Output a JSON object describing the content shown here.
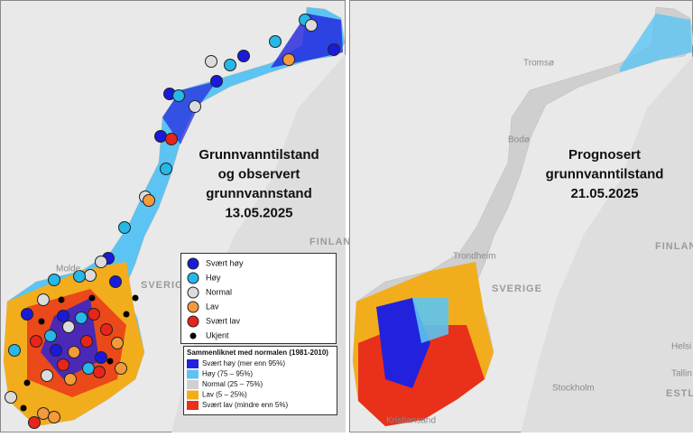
{
  "panels": [
    {
      "title_lines": [
        "Grunnvanntilstand",
        "og observert",
        "grunnvannstand",
        "13.05.2025"
      ],
      "place_labels": [
        "FINLAN",
        "SVERIGE",
        "Molde"
      ]
    },
    {
      "title_lines": [
        "Prognosert",
        "grunnvanntilstand",
        "21.05.2025"
      ],
      "place_labels": [
        "Tromsø",
        "Bodø",
        "Trondheim",
        "SVERIGE",
        "FINLAN",
        "Kristiansand",
        "Stockholm",
        "Helsi",
        "Tallin",
        "ESTLA"
      ]
    }
  ],
  "legend": {
    "stations": [
      {
        "label": "Svært høy",
        "color": "#1a1adb"
      },
      {
        "label": "Høy",
        "color": "#25b8e8"
      },
      {
        "label": "Normal",
        "color": "#dcdcdc"
      },
      {
        "label": "Lav",
        "color": "#f39a3a"
      },
      {
        "label": "Svært lav",
        "color": "#e8251a"
      },
      {
        "label": "Ukjent",
        "color": "#000000"
      }
    ],
    "heading": "Sammenliknet med normalen (1981-2010)",
    "classes": [
      {
        "label": "Svært høy (mer enn 95%)",
        "color": "#2222dd"
      },
      {
        "label": "Høy (75 – 95%)",
        "color": "#5bc4f2"
      },
      {
        "label": "Normal (25 – 75%)",
        "color": "#cfcfcf"
      },
      {
        "label": "Lav (5 – 25%)",
        "color": "#f2ad1c"
      },
      {
        "label": "Svært lav (mindre enn 5%)",
        "color": "#e8301a"
      }
    ]
  }
}
